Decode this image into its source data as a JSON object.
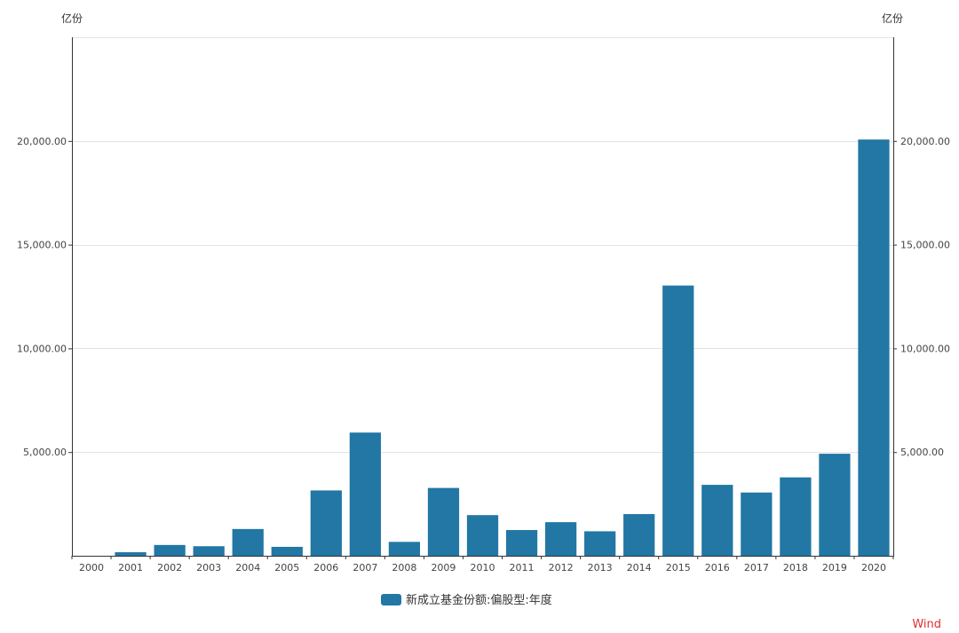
{
  "chart_data": {
    "type": "bar",
    "categories": [
      "2000",
      "2001",
      "2002",
      "2003",
      "2004",
      "2005",
      "2006",
      "2007",
      "2008",
      "2009",
      "2010",
      "2011",
      "2012",
      "2013",
      "2014",
      "2015",
      "2016",
      "2017",
      "2018",
      "2019",
      "2020"
    ],
    "series": [
      {
        "name": "新成立基金份额:偏股型:年度",
        "color": "#2277a4",
        "values": [
          0,
          170,
          520,
          460,
          1290,
          430,
          3150,
          5940,
          670,
          3270,
          1960,
          1240,
          1620,
          1180,
          2010,
          13030,
          3420,
          3050,
          3780,
          4920,
          20070
        ]
      }
    ],
    "y_unit_left": "亿份",
    "y_unit_right": "亿份",
    "ylim": [
      0,
      25000
    ],
    "y_ticks": [
      5000,
      10000,
      15000,
      20000
    ],
    "y_tick_labels": [
      "5,000.00",
      "10,000.00",
      "15,000.00",
      "20,000.00"
    ],
    "grid": true,
    "legend_position": "bottom-center",
    "source": "Wind"
  }
}
